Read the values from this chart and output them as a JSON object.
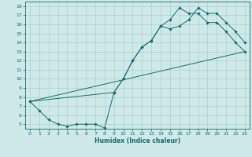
{
  "xlabel": "Humidex (Indice chaleur)",
  "bg_color": "#cfe8e8",
  "line_color": "#1a6b6b",
  "grid_color": "#a0cccc",
  "xlim": [
    -0.5,
    23.5
  ],
  "ylim": [
    4.5,
    18.5
  ],
  "xticks": [
    0,
    1,
    2,
    3,
    4,
    5,
    6,
    7,
    8,
    9,
    10,
    11,
    12,
    13,
    14,
    15,
    16,
    17,
    18,
    19,
    20,
    21,
    22,
    23
  ],
  "yticks": [
    5,
    6,
    7,
    8,
    9,
    10,
    11,
    12,
    13,
    14,
    15,
    16,
    17,
    18
  ],
  "line1_x": [
    0,
    1,
    2,
    3,
    4,
    5,
    6,
    7,
    8,
    9,
    10,
    11,
    12,
    13,
    14,
    15,
    16,
    17,
    18,
    19,
    20,
    21,
    22,
    23
  ],
  "line1_y": [
    7.5,
    6.5,
    5.5,
    5.0,
    4.8,
    5.0,
    5.0,
    5.0,
    4.6,
    8.5,
    10.0,
    12.0,
    13.5,
    14.2,
    15.8,
    15.5,
    15.8,
    16.5,
    17.8,
    17.2,
    17.2,
    16.2,
    15.2,
    14.0
  ],
  "line2_x": [
    0,
    9,
    10,
    11,
    12,
    13,
    14,
    15,
    16,
    17,
    18,
    19,
    20,
    21,
    22,
    23
  ],
  "line2_y": [
    7.5,
    8.5,
    10.0,
    12.0,
    13.5,
    14.2,
    15.8,
    16.5,
    17.8,
    17.2,
    17.2,
    16.2,
    16.2,
    15.2,
    14.0,
    13.0
  ],
  "line3_x": [
    0,
    23
  ],
  "line3_y": [
    7.5,
    13.0
  ]
}
